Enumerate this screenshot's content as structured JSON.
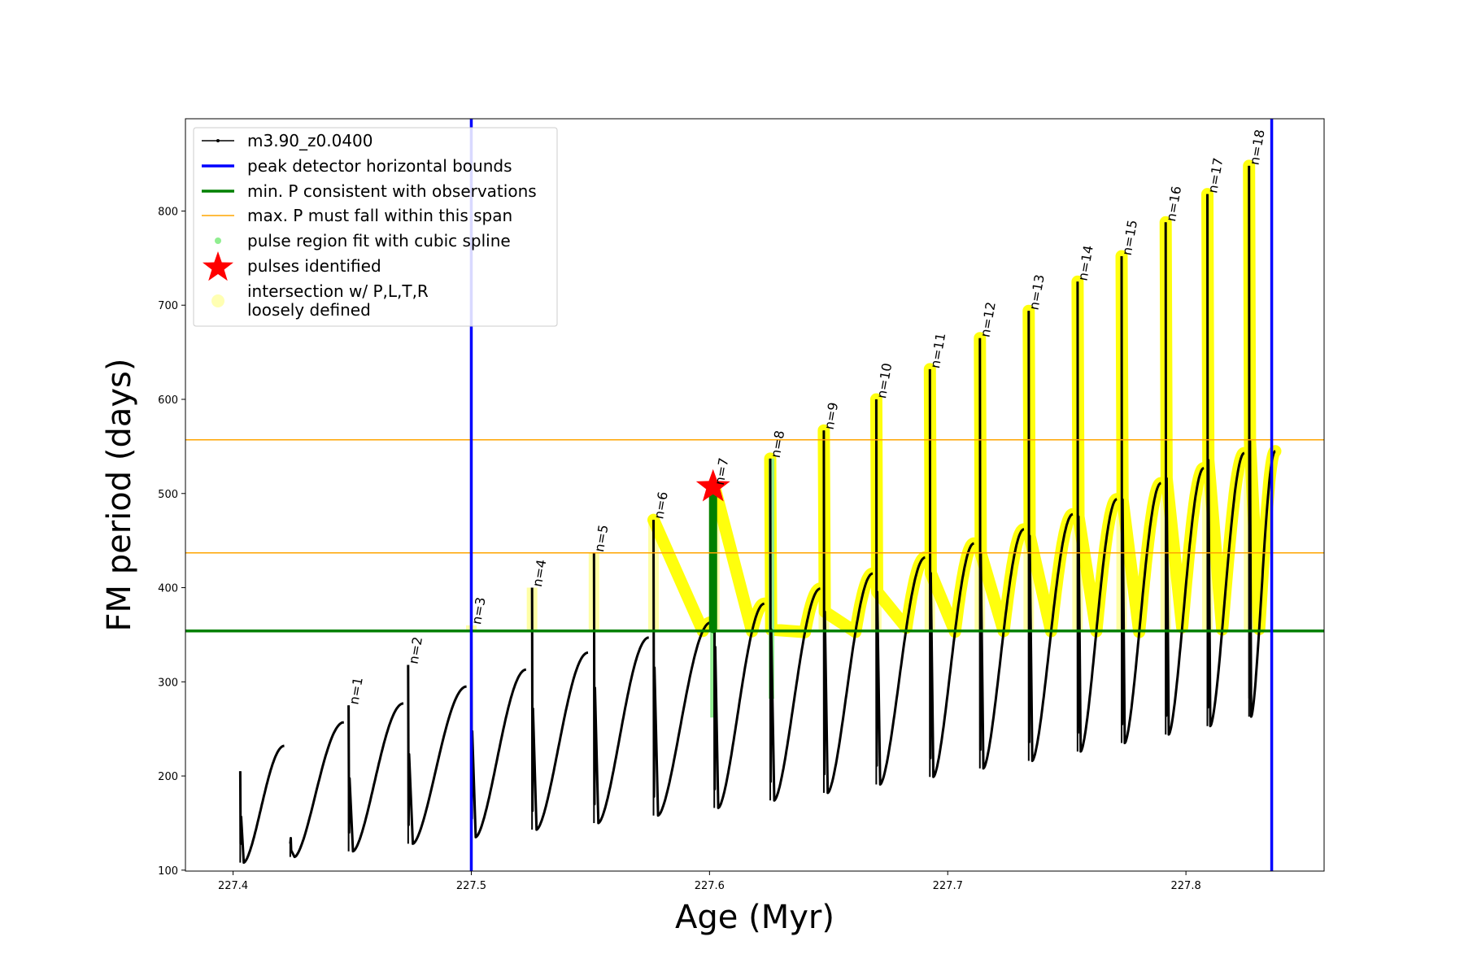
{
  "chart_data": {
    "type": "line",
    "xlabel": "Age (Myr)",
    "ylabel": "FM period (days)",
    "xlim": [
      227.38,
      227.858
    ],
    "ylim": [
      99,
      898
    ],
    "xticks": [
      227.4,
      227.5,
      227.6,
      227.7,
      227.8
    ],
    "xtick_labels": [
      "227.4",
      "227.5",
      "227.6",
      "227.7",
      "227.8"
    ],
    "yticks": [
      100,
      200,
      300,
      400,
      500,
      600,
      700,
      800
    ],
    "ytick_labels": [
      "100",
      "200",
      "300",
      "400",
      "500",
      "600",
      "700",
      "800"
    ],
    "grid": false,
    "legend_position": "top-left",
    "colors": {
      "track": "#000000",
      "bounds": "#0000ff",
      "min_p": "#008000",
      "max_p": "#ffa500",
      "spline": "#90ee90",
      "star": "#ff0000",
      "intersection": "#ffff00"
    },
    "legend": [
      {
        "label": "m3.90_z0.0400",
        "kind": "line-marker",
        "color": "#000000"
      },
      {
        "label": "peak detector horizontal bounds",
        "kind": "line",
        "color": "#0000ff"
      },
      {
        "label": "min. P consistent with observations",
        "kind": "line",
        "color": "#008000"
      },
      {
        "label": "max. P must fall within this span",
        "kind": "thin-line",
        "color": "#ffa500"
      },
      {
        "label": "pulse region fit with cubic spline",
        "kind": "dot",
        "color": "#90ee90"
      },
      {
        "label": "pulses identified",
        "kind": "star",
        "color": "#ff0000"
      },
      {
        "label": "intersection w/ P,L,T,R",
        "label_line2": "loosely defined",
        "kind": "big-dot",
        "color": "#ffff80"
      }
    ],
    "vertical_lines": [
      227.5,
      227.836
    ],
    "min_p_line": 354,
    "max_p_span": [
      437,
      557
    ],
    "series": [
      {
        "name": "m3.90_z0.0400",
        "pulses": [
          {
            "start": 227.403,
            "end": 227.4215,
            "min": 108,
            "max": 232,
            "spike": 205,
            "mid_frac": 0.55
          },
          {
            "start": 227.424,
            "end": 227.4465,
            "min": 114,
            "max": 257,
            "spike": 128,
            "mid_frac": 0.62
          },
          {
            "start": 227.4485,
            "end": 227.4715,
            "min": 120,
            "max": 277,
            "spike": 275,
            "mid_frac": 0.62
          },
          {
            "start": 227.4735,
            "end": 227.498,
            "min": 128,
            "max": 295,
            "spike": 318,
            "mid_frac": 0.64
          },
          {
            "start": 227.5,
            "end": 227.523,
            "min": 135,
            "max": 313,
            "spike": 360,
            "mid_frac": 0.64
          },
          {
            "start": 227.5255,
            "end": 227.549,
            "min": 143,
            "max": 331,
            "spike": 400,
            "mid_frac": 0.64
          },
          {
            "start": 227.5515,
            "end": 227.5745,
            "min": 150,
            "max": 347,
            "spike": 437,
            "mid_frac": 0.64
          },
          {
            "start": 227.5765,
            "end": 227.6005,
            "min": 158,
            "max": 363,
            "spike": 472,
            "mid_frac": 0.65
          },
          {
            "start": 227.602,
            "end": 227.623,
            "min": 166,
            "max": 383,
            "spike": 508,
            "mid_frac": 0.66
          },
          {
            "start": 227.6255,
            "end": 227.6465,
            "min": 174,
            "max": 399,
            "spike": 537,
            "mid_frac": 0.66
          },
          {
            "start": 227.648,
            "end": 227.6685,
            "min": 182,
            "max": 415,
            "spike": 567,
            "mid_frac": 0.66
          },
          {
            "start": 227.67,
            "end": 227.6905,
            "min": 191,
            "max": 432,
            "spike": 600,
            "mid_frac": 0.66
          },
          {
            "start": 227.6925,
            "end": 227.711,
            "min": 199,
            "max": 447,
            "spike": 632,
            "mid_frac": 0.66
          },
          {
            "start": 227.7135,
            "end": 227.732,
            "min": 208,
            "max": 462,
            "spike": 665,
            "mid_frac": 0.66
          },
          {
            "start": 227.734,
            "end": 227.7525,
            "min": 216,
            "max": 478,
            "spike": 694,
            "mid_frac": 0.66
          },
          {
            "start": 227.7545,
            "end": 227.771,
            "min": 226,
            "max": 494,
            "spike": 725,
            "mid_frac": 0.66
          },
          {
            "start": 227.773,
            "end": 227.7895,
            "min": 235,
            "max": 511,
            "spike": 752,
            "mid_frac": 0.66
          },
          {
            "start": 227.7915,
            "end": 227.8075,
            "min": 244,
            "max": 527,
            "spike": 788,
            "mid_frac": 0.66
          },
          {
            "start": 227.809,
            "end": 227.8245,
            "min": 253,
            "max": 543,
            "spike": 818,
            "mid_frac": 0.66
          },
          {
            "start": 227.8265,
            "end": 227.8375,
            "min": 263,
            "max": 545,
            "spike": 848,
            "mid_frac": 0.66
          }
        ]
      }
    ],
    "pulse_labels": [
      {
        "label": "n=1",
        "x": 227.449,
        "y": 277
      },
      {
        "label": "n=2",
        "x": 227.474,
        "y": 320
      },
      {
        "label": "n=3",
        "x": 227.5005,
        "y": 362
      },
      {
        "label": "n=4",
        "x": 227.526,
        "y": 402
      },
      {
        "label": "n=5",
        "x": 227.552,
        "y": 439
      },
      {
        "label": "n=6",
        "x": 227.577,
        "y": 474
      },
      {
        "label": "n=7",
        "x": 227.6025,
        "y": 510
      },
      {
        "label": "n=8",
        "x": 227.626,
        "y": 539
      },
      {
        "label": "n=9",
        "x": 227.6485,
        "y": 569
      },
      {
        "label": "n=10",
        "x": 227.6705,
        "y": 602
      },
      {
        "label": "n=11",
        "x": 227.693,
        "y": 634
      },
      {
        "label": "n=12",
        "x": 227.714,
        "y": 667
      },
      {
        "label": "n=13",
        "x": 227.7345,
        "y": 696
      },
      {
        "label": "n=14",
        "x": 227.755,
        "y": 727
      },
      {
        "label": "n=15",
        "x": 227.7735,
        "y": 754
      },
      {
        "label": "n=16",
        "x": 227.792,
        "y": 790
      },
      {
        "label": "n=17",
        "x": 227.8095,
        "y": 820
      },
      {
        "label": "n=18",
        "x": 227.827,
        "y": 850
      }
    ],
    "identified_pulse": {
      "x": 227.6015,
      "y": 507
    }
  }
}
